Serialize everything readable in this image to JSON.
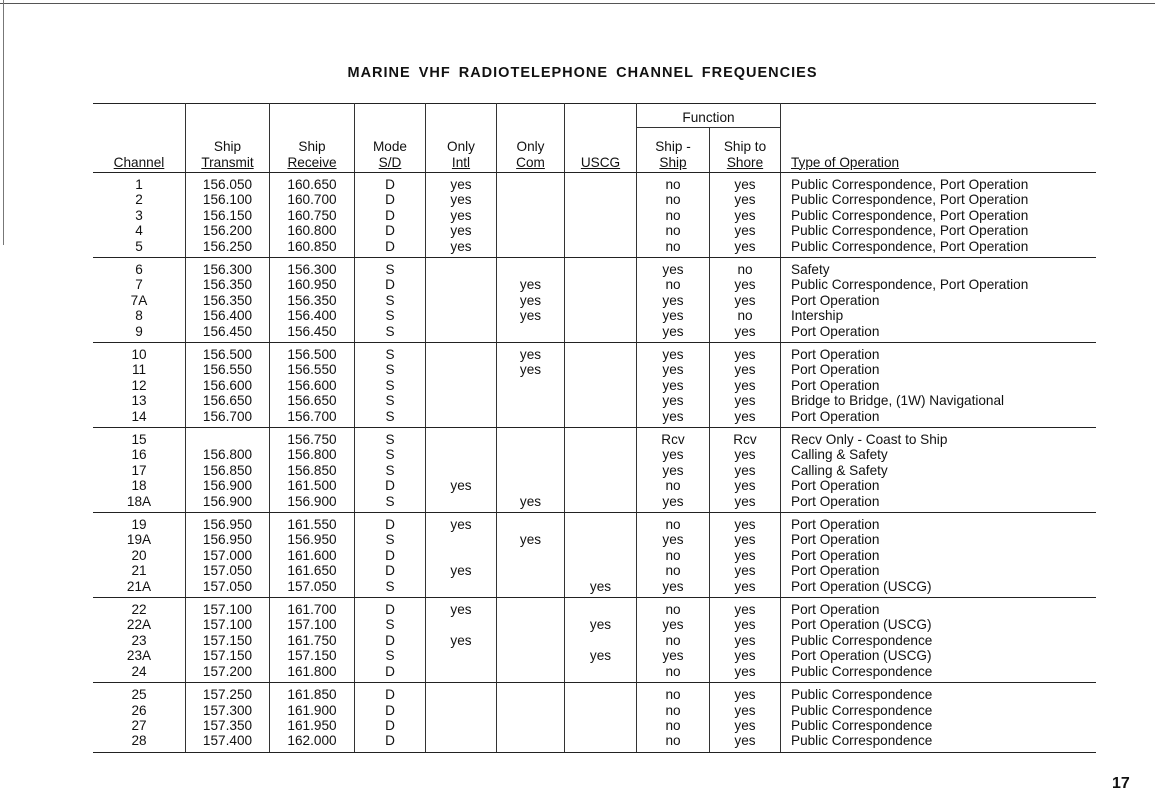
{
  "title": "MARINE VHF RADIOTELEPHONE CHANNEL FREQUENCIES",
  "page_number": "17",
  "headers": {
    "function_group": "Function",
    "channel": [
      "",
      "Channel"
    ],
    "transmit": [
      "Ship",
      "Transmit"
    ],
    "receive": [
      "Ship",
      "Receive"
    ],
    "mode": [
      "Mode",
      "S/D"
    ],
    "intl": [
      "Only",
      "Intl"
    ],
    "com": [
      "Only",
      "Com"
    ],
    "uscg": [
      "",
      "USCG"
    ],
    "ship_ship": [
      "Ship -",
      "Ship"
    ],
    "ship_shore": [
      "Ship to",
      "Shore"
    ],
    "type": [
      "",
      "Type of Operation"
    ]
  },
  "groups": [
    [
      [
        "1",
        "156.050",
        "160.650",
        "D",
        "yes",
        "",
        "",
        "no",
        "yes",
        "Public Correspondence, Port Operation"
      ],
      [
        "2",
        "156.100",
        "160.700",
        "D",
        "yes",
        "",
        "",
        "no",
        "yes",
        "Public Correspondence, Port Operation"
      ],
      [
        "3",
        "156.150",
        "160.750",
        "D",
        "yes",
        "",
        "",
        "no",
        "yes",
        "Public Correspondence, Port Operation"
      ],
      [
        "4",
        "156.200",
        "160.800",
        "D",
        "yes",
        "",
        "",
        "no",
        "yes",
        "Public Correspondence, Port Operation"
      ],
      [
        "5",
        "156.250",
        "160.850",
        "D",
        "yes",
        "",
        "",
        "no",
        "yes",
        "Public Correspondence, Port Operation"
      ]
    ],
    [
      [
        "6",
        "156.300",
        "156.300",
        "S",
        "",
        "",
        "",
        "yes",
        "no",
        "Safety"
      ],
      [
        "7",
        "156.350",
        "160.950",
        "D",
        "",
        "yes",
        "",
        "no",
        "yes",
        "Public Correspondence, Port Operation"
      ],
      [
        "7A",
        "156.350",
        "156.350",
        "S",
        "",
        "yes",
        "",
        "yes",
        "yes",
        "Port Operation"
      ],
      [
        "8",
        "156.400",
        "156.400",
        "S",
        "",
        "yes",
        "",
        "yes",
        "no",
        "Intership"
      ],
      [
        "9",
        "156.450",
        "156.450",
        "S",
        "",
        "",
        "",
        "yes",
        "yes",
        "Port Operation"
      ]
    ],
    [
      [
        "10",
        "156.500",
        "156.500",
        "S",
        "",
        "yes",
        "",
        "yes",
        "yes",
        "Port Operation"
      ],
      [
        "11",
        "156.550",
        "156.550",
        "S",
        "",
        "yes",
        "",
        "yes",
        "yes",
        "Port Operation"
      ],
      [
        "12",
        "156.600",
        "156.600",
        "S",
        "",
        "",
        "",
        "yes",
        "yes",
        "Port Operation"
      ],
      [
        "13",
        "156.650",
        "156.650",
        "S",
        "",
        "",
        "",
        "yes",
        "yes",
        "Bridge to Bridge, (1W) Navigational"
      ],
      [
        "14",
        "156.700",
        "156.700",
        "S",
        "",
        "",
        "",
        "yes",
        "yes",
        "Port Operation"
      ]
    ],
    [
      [
        "15",
        "",
        "156.750",
        "S",
        "",
        "",
        "",
        "Rcv",
        "Rcv",
        "Recv Only - Coast to Ship"
      ],
      [
        "16",
        "156.800",
        "156.800",
        "S",
        "",
        "",
        "",
        "yes",
        "yes",
        "Calling & Safety"
      ],
      [
        "17",
        "156.850",
        "156.850",
        "S",
        "",
        "",
        "",
        "yes",
        "yes",
        "Calling & Safety"
      ],
      [
        "18",
        "156.900",
        "161.500",
        "D",
        "yes",
        "",
        "",
        "no",
        "yes",
        "Port Operation"
      ],
      [
        "18A",
        "156.900",
        "156.900",
        "S",
        "",
        "yes",
        "",
        "yes",
        "yes",
        "Port Operation"
      ]
    ],
    [
      [
        "19",
        "156.950",
        "161.550",
        "D",
        "yes",
        "",
        "",
        "no",
        "yes",
        "Port Operation"
      ],
      [
        "19A",
        "156.950",
        "156.950",
        "S",
        "",
        "yes",
        "",
        "yes",
        "yes",
        "Port Operation"
      ],
      [
        "20",
        "157.000",
        "161.600",
        "D",
        "",
        "",
        "",
        "no",
        "yes",
        "Port Operation"
      ],
      [
        "21",
        "157.050",
        "161.650",
        "D",
        "yes",
        "",
        "",
        "no",
        "yes",
        "Port Operation"
      ],
      [
        "21A",
        "157.050",
        "157.050",
        "S",
        "",
        "",
        "yes",
        "yes",
        "yes",
        "Port Operation (USCG)"
      ]
    ],
    [
      [
        "22",
        "157.100",
        "161.700",
        "D",
        "yes",
        "",
        "",
        "no",
        "yes",
        "Port Operation"
      ],
      [
        "22A",
        "157.100",
        "157.100",
        "S",
        "",
        "",
        "yes",
        "yes",
        "yes",
        "Port Operation (USCG)"
      ],
      [
        "23",
        "157.150",
        "161.750",
        "D",
        "yes",
        "",
        "",
        "no",
        "yes",
        "Public Correspondence"
      ],
      [
        "23A",
        "157.150",
        "157.150",
        "S",
        "",
        "",
        "yes",
        "yes",
        "yes",
        "Port Operation (USCG)"
      ],
      [
        "24",
        "157.200",
        "161.800",
        "D",
        "",
        "",
        "",
        "no",
        "yes",
        "Public Correspondence"
      ]
    ],
    [
      [
        "25",
        "157.250",
        "161.850",
        "D",
        "",
        "",
        "",
        "no",
        "yes",
        "Public Correspondence"
      ],
      [
        "26",
        "157.300",
        "161.900",
        "D",
        "",
        "",
        "",
        "no",
        "yes",
        "Public Correspondence"
      ],
      [
        "27",
        "157.350",
        "161.950",
        "D",
        "",
        "",
        "",
        "no",
        "yes",
        "Public Correspondence"
      ],
      [
        "28",
        "157.400",
        "162.000",
        "D",
        "",
        "",
        "",
        "no",
        "yes",
        "Public Correspondence"
      ]
    ]
  ]
}
